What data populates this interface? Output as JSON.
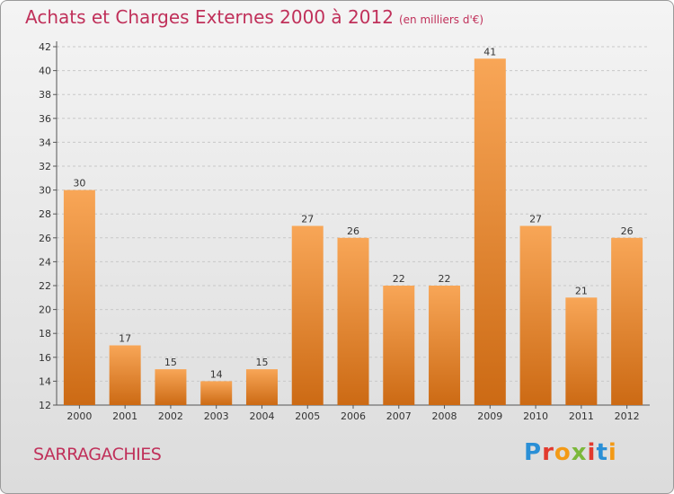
{
  "header": {
    "title": "Achats et Charges Externes 2000 à 2012",
    "unit": "(en milliers d'€)"
  },
  "commune": "SARRAGACHIES",
  "logo": {
    "text": "Proxiti"
  },
  "colors": {
    "title": "#c0305a",
    "bar_top": "#f8a657",
    "bar_bottom": "#cc6a14",
    "grid": "#c8c8c8"
  },
  "chart_data": {
    "type": "bar",
    "title": "Achats et Charges Externes 2000 à 2012",
    "subtitle": "(en milliers d'€)",
    "xlabel": "",
    "ylabel": "",
    "categories": [
      "2000",
      "2001",
      "2002",
      "2003",
      "2004",
      "2005",
      "2006",
      "2007",
      "2008",
      "2009",
      "2010",
      "2011",
      "2012"
    ],
    "values": [
      30,
      17,
      15,
      14,
      15,
      27,
      26,
      22,
      22,
      41,
      27,
      21,
      26
    ],
    "ylim": [
      12,
      42
    ],
    "yticks": [
      12,
      14,
      16,
      18,
      20,
      22,
      24,
      26,
      28,
      30,
      32,
      34,
      36,
      38,
      40,
      42
    ],
    "grid": true,
    "data_labels": true
  }
}
